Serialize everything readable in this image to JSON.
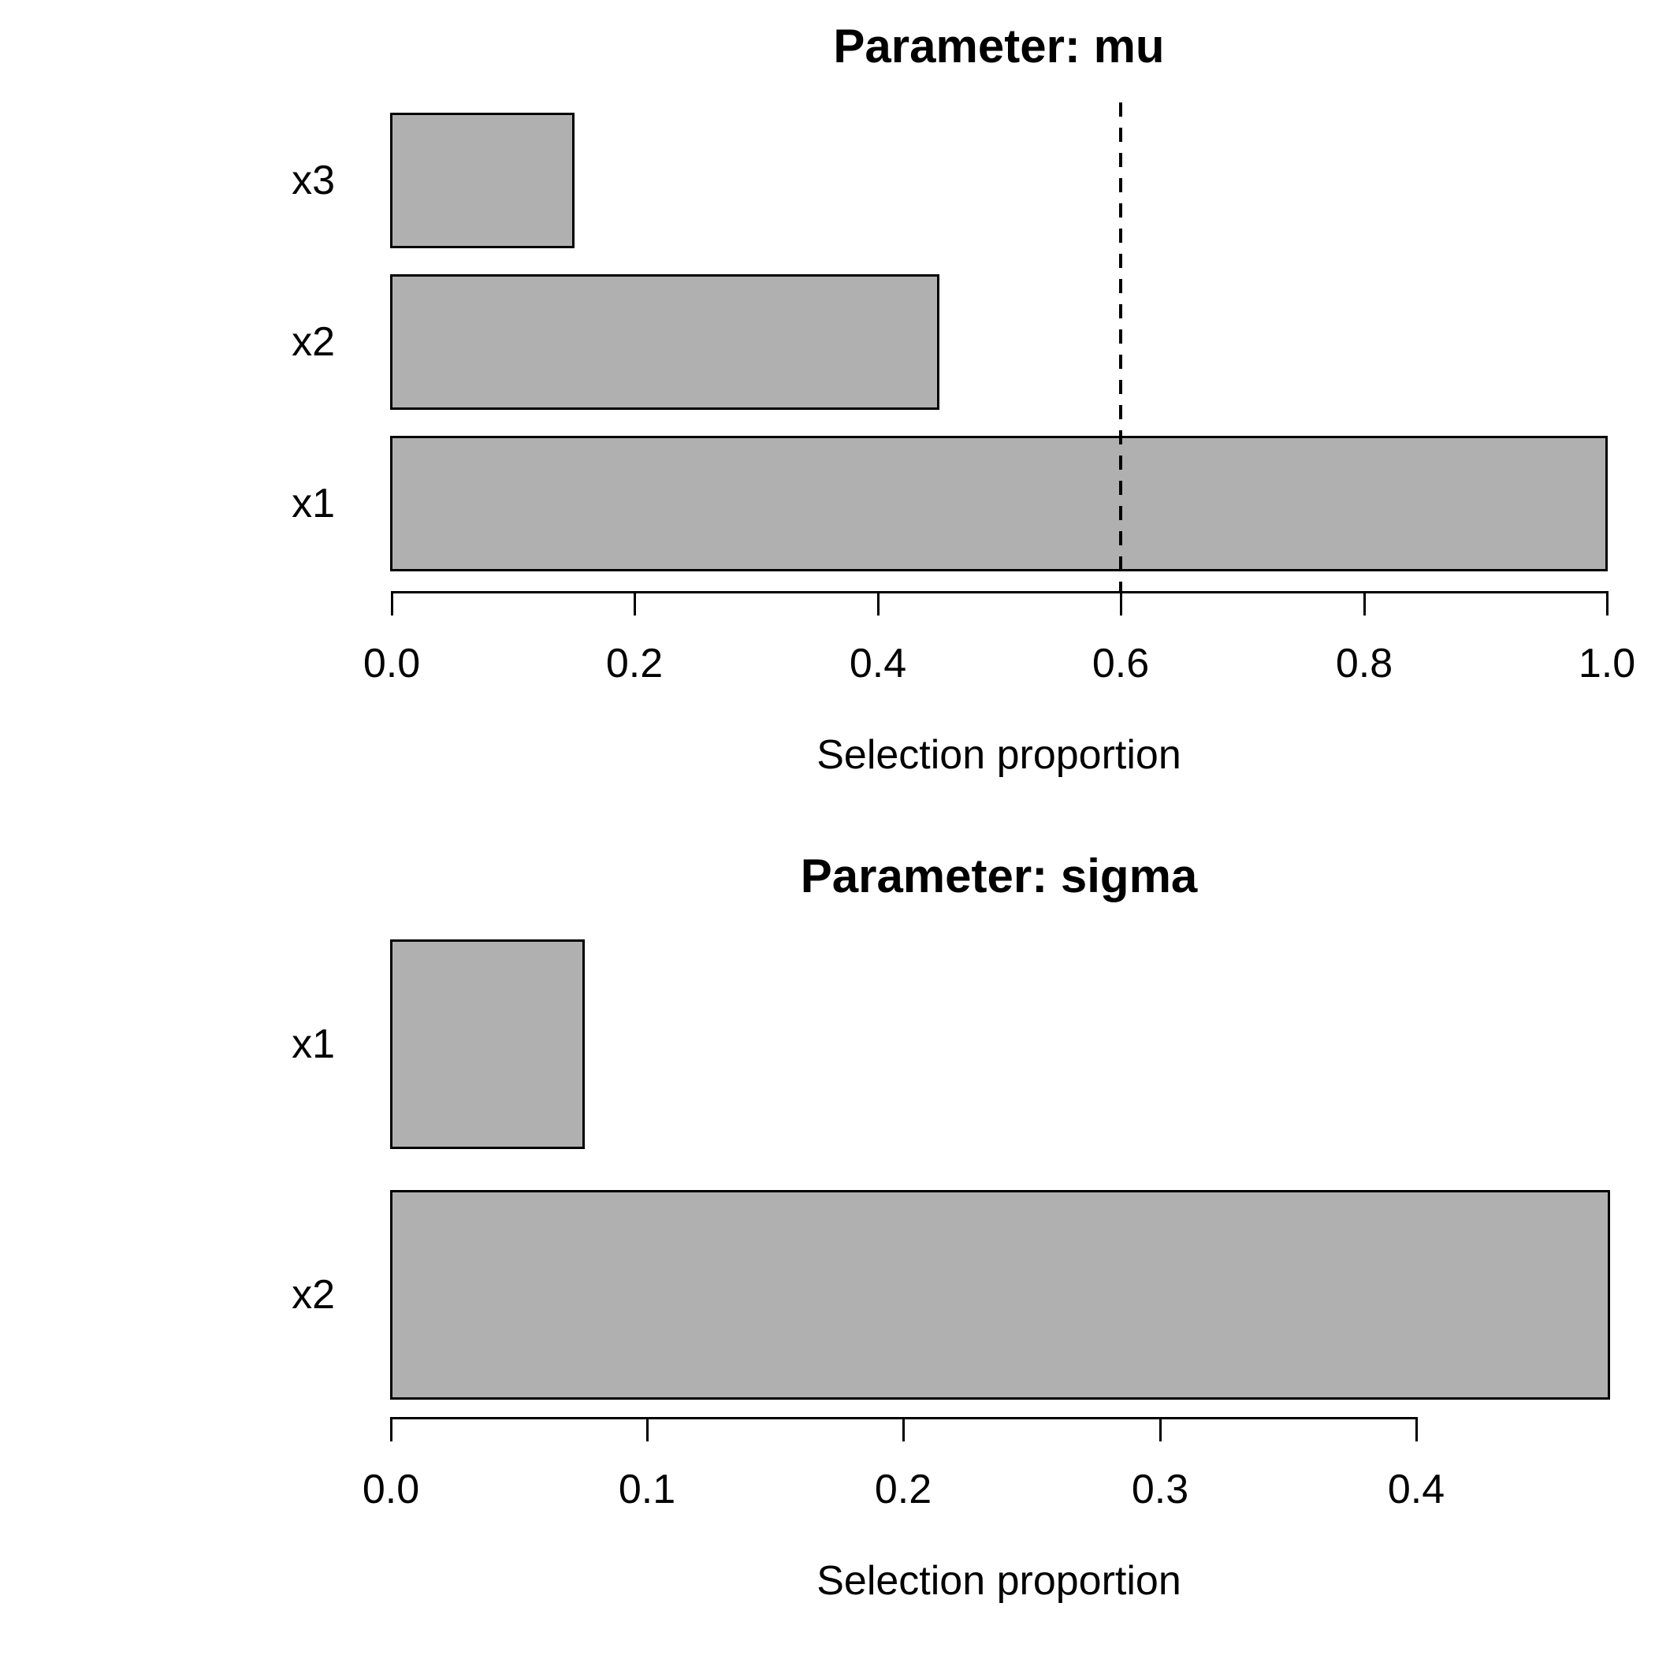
{
  "chart_data": [
    {
      "type": "bar",
      "orientation": "horizontal",
      "title": "Parameter: mu",
      "xlabel": "Selection proportion",
      "categories": [
        "x3",
        "x2",
        "x1"
      ],
      "values": [
        0.15,
        0.45,
        1.0
      ],
      "x_ticks": [
        0.0,
        0.2,
        0.4,
        0.6,
        0.8,
        1.0
      ],
      "x_tick_labels": [
        "0.0",
        "0.2",
        "0.4",
        "0.6",
        "0.8",
        "1.0"
      ],
      "xlim": [
        0.0,
        1.0
      ],
      "grid": false,
      "legend": false,
      "reference_line": {
        "value": 0.6,
        "style": "dashed",
        "color": "#000000"
      },
      "bar_fill": "#b0b0b0",
      "bar_border": "#000000"
    },
    {
      "type": "bar",
      "orientation": "horizontal",
      "title": "Parameter: sigma",
      "xlabel": "Selection proportion",
      "categories": [
        "x1",
        "x2"
      ],
      "values": [
        0.075,
        0.475
      ],
      "x_ticks": [
        0.0,
        0.1,
        0.2,
        0.3,
        0.4
      ],
      "x_tick_labels": [
        "0.0",
        "0.1",
        "0.2",
        "0.3",
        "0.4"
      ],
      "xlim": [
        0.0,
        0.475
      ],
      "grid": false,
      "legend": false,
      "reference_line": null,
      "bar_fill": "#b0b0b0",
      "bar_border": "#000000"
    }
  ]
}
